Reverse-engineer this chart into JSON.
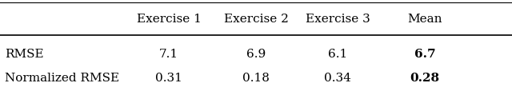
{
  "col_headers": [
    "",
    "Exercise 1",
    "Exercise 2",
    "Exercise 3",
    "Mean"
  ],
  "rows": [
    [
      "RMSE",
      "7.1",
      "6.9",
      "6.1",
      "6.7"
    ],
    [
      "Normalized RMSE",
      "0.31",
      "0.18",
      "0.34",
      "0.28"
    ]
  ],
  "bold_last_col": true,
  "background_color": "#ffffff",
  "font_size": 11,
  "header_font_size": 11
}
